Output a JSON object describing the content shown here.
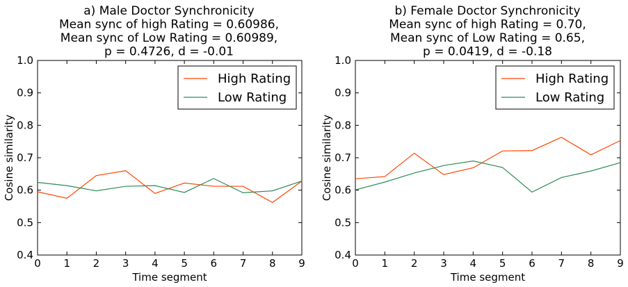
{
  "chart_data": [
    {
      "type": "line",
      "title": [
        "a) Male Doctor Synchronicity",
        "Mean sync of high Rating = 0.60986,",
        "Mean sync of Low Rating = 0.60989,",
        "p = 0.4726, d = -0.01"
      ],
      "xlabel": "Time segment",
      "ylabel": "Cosine similarity",
      "xlim": [
        0,
        9
      ],
      "ylim": [
        0.4,
        1.0
      ],
      "x": [
        0,
        1,
        2,
        3,
        4,
        5,
        6,
        7,
        8,
        9
      ],
      "xticks": [
        "0",
        "1",
        "2",
        "3",
        "4",
        "5",
        "6",
        "7",
        "8",
        "9"
      ],
      "yticks": [
        "0.4",
        "0.5",
        "0.6",
        "0.7",
        "0.8",
        "0.9",
        "1.0"
      ],
      "legend_position": "top-right",
      "grid": false,
      "series": [
        {
          "name": "High Rating",
          "color": "#FF4500",
          "values": [
            0.595,
            0.575,
            0.645,
            0.66,
            0.59,
            0.622,
            0.612,
            0.612,
            0.562,
            0.628
          ]
        },
        {
          "name": "Low Rating",
          "color": "#2E8B57",
          "values": [
            0.624,
            0.614,
            0.598,
            0.612,
            0.614,
            0.593,
            0.636,
            0.592,
            0.598,
            0.628
          ]
        }
      ]
    },
    {
      "type": "line",
      "title": [
        "b) Female Doctor Synchronicity",
        "Mean sync of high Rating = 0.70,",
        "Mean sync of Low Rating = 0.65,",
        "p = 0.0419, d = -0.18"
      ],
      "xlabel": "Time segment",
      "ylabel": "Cosine similarity",
      "xlim": [
        0,
        9
      ],
      "ylim": [
        0.4,
        1.0
      ],
      "x": [
        0,
        1,
        2,
        3,
        4,
        5,
        6,
        7,
        8,
        9
      ],
      "xticks": [
        "0",
        "1",
        "2",
        "3",
        "4",
        "5",
        "6",
        "7",
        "8",
        "9"
      ],
      "yticks": [
        "0.4",
        "0.5",
        "0.6",
        "0.7",
        "0.8",
        "0.9",
        "1.0"
      ],
      "legend_position": "top-right",
      "grid": false,
      "series": [
        {
          "name": "High Rating",
          "color": "#FF4500",
          "values": [
            0.635,
            0.642,
            0.714,
            0.648,
            0.669,
            0.721,
            0.722,
            0.763,
            0.709,
            0.753
          ]
        },
        {
          "name": "Low Rating",
          "color": "#2E8B57",
          "values": [
            0.601,
            0.625,
            0.653,
            0.676,
            0.69,
            0.67,
            0.594,
            0.639,
            0.659,
            0.685
          ]
        }
      ]
    }
  ]
}
